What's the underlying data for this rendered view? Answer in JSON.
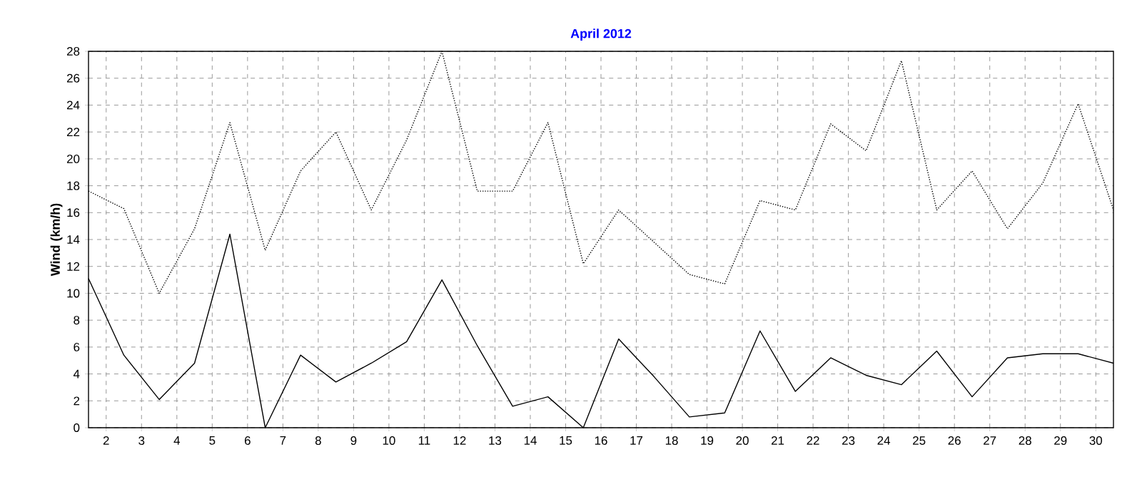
{
  "chart_data": {
    "type": "line",
    "title": "April 2012",
    "ylabel": "Wind  (km/h)",
    "x": [
      1.5,
      2.5,
      3.5,
      4.5,
      5.5,
      6.5,
      7.5,
      8.5,
      9.5,
      10.5,
      11.5,
      12.5,
      13.5,
      14.5,
      15.5,
      16.5,
      17.5,
      18.5,
      19.5,
      20.5,
      21.5,
      22.5,
      23.5,
      24.5,
      25.5,
      26.5,
      27.5,
      28.5,
      29.5,
      30.5
    ],
    "series": [
      {
        "color": "#000000",
        "line_style": "dotted",
        "values": [
          17.6,
          16.3,
          10.0,
          14.8,
          22.7,
          13.2,
          19.1,
          22.0,
          16.2,
          21.4,
          28.0,
          17.6,
          17.6,
          22.7,
          12.2,
          16.2,
          13.8,
          11.4,
          10.7,
          16.9,
          16.2,
          22.6,
          20.6,
          27.3,
          16.2,
          19.1,
          14.8,
          18.2,
          24.1,
          16.2
        ]
      },
      {
        "color": "#000000",
        "line_style": "solid",
        "values": [
          11.1,
          5.4,
          2.1,
          4.8,
          14.4,
          0,
          5.4,
          3.4,
          4.8,
          6.4,
          11.0,
          6.1,
          1.6,
          2.3,
          0,
          6.6,
          3.8,
          0.8,
          1.1,
          7.2,
          2.7,
          5.2,
          3.9,
          3.2,
          5.7,
          2.3,
          5.2,
          5.5,
          5.5,
          4.8
        ]
      }
    ],
    "xlim": [
      1.5,
      30.5
    ],
    "ylim": [
      0,
      28
    ],
    "xticks": [
      2,
      3,
      4,
      5,
      6,
      7,
      8,
      9,
      10,
      11,
      12,
      13,
      14,
      15,
      16,
      17,
      18,
      19,
      20,
      21,
      22,
      23,
      24,
      25,
      26,
      27,
      28,
      29,
      30
    ],
    "yticks": [
      0,
      2,
      4,
      6,
      8,
      10,
      12,
      14,
      16,
      18,
      20,
      22,
      24,
      26,
      28
    ],
    "grid": true
  }
}
